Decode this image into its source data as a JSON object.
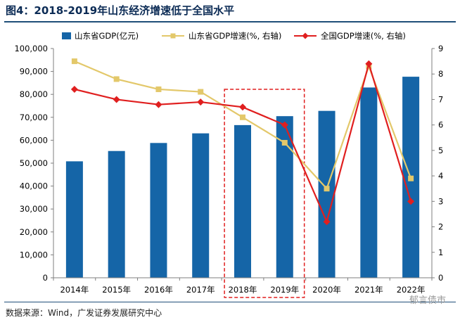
{
  "title": "图4：2018-2019年山东经济增速低于全国水平",
  "source": "数据来源：Wind，广发证券发展研究中心",
  "watermark": "郁言债市",
  "colors": {
    "bar": "#1565a7",
    "shandong_line": "#e3c86a",
    "national_line": "#e01f1f",
    "highlight": "#e01f1f"
  },
  "chart_data": {
    "type": "bar",
    "categories": [
      "2014年",
      "2015年",
      "2016年",
      "2017年",
      "2018年",
      "2019年",
      "2020年",
      "2021年",
      "2022年"
    ],
    "series": [
      {
        "name": "山东省GDP(亿元)",
        "type": "bar",
        "axis": "left",
        "values": [
          50800,
          55300,
          58800,
          63000,
          66600,
          70500,
          72800,
          83000,
          87700
        ]
      },
      {
        "name": "山东省GDP增速(%, 右轴)",
        "type": "line",
        "axis": "right",
        "marker": "square",
        "values": [
          8.5,
          7.8,
          7.4,
          7.3,
          6.3,
          5.3,
          3.5,
          8.3,
          3.9
        ]
      },
      {
        "name": "全国GDP增速(%, 右轴)",
        "type": "line",
        "axis": "right",
        "marker": "diamond",
        "values": [
          7.4,
          7.0,
          6.8,
          6.9,
          6.7,
          6.0,
          2.2,
          8.4,
          3.0
        ]
      }
    ],
    "left_axis": {
      "ylim": [
        0,
        100000
      ],
      "tick_labels": [
        "0",
        "10,000",
        "20,000",
        "30,000",
        "40,000",
        "50,000",
        "60,000",
        "70,000",
        "80,000",
        "90,000",
        "100,000"
      ]
    },
    "right_axis": {
      "ylim": [
        0,
        9
      ],
      "tick_labels": [
        "0",
        "1",
        "2",
        "3",
        "4",
        "5",
        "6",
        "7",
        "8",
        "9"
      ]
    },
    "legend_position": "top",
    "grid": false,
    "highlight_categories": [
      "2018年",
      "2019年"
    ]
  }
}
